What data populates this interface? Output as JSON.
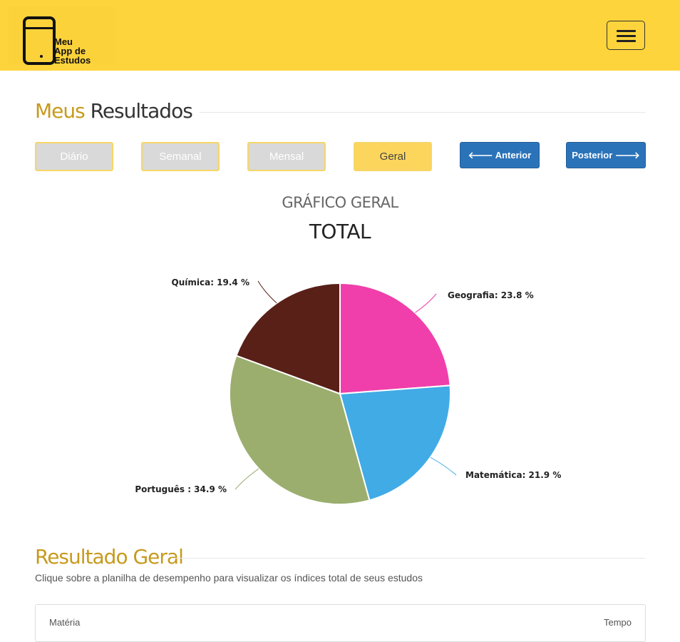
{
  "app": {
    "logo_text": [
      "Meu",
      "App de",
      "Estudos"
    ]
  },
  "header": {
    "menu_icon": "hamburger-icon",
    "bg_color": "#fdd43b"
  },
  "results": {
    "title_highlight": "Meus",
    "title_rest": "Resultados",
    "tabs": [
      {
        "label": "Diário",
        "active": false
      },
      {
        "label": "Semanal",
        "active": false
      },
      {
        "label": "Mensal",
        "active": false
      },
      {
        "label": "Geral",
        "active": true
      }
    ],
    "prev_label": "Anterior",
    "next_label": "Posterior"
  },
  "chart_data": {
    "type": "pie",
    "subtitle": "GRÁFICO GERAL",
    "title": "TOTAL",
    "slices": [
      {
        "label": "Geografia",
        "value": 23.8,
        "color": "#f03faa",
        "label_text": "Geografia: 23.8 %"
      },
      {
        "label": "Matemática",
        "value": 21.9,
        "color": "#41abe6",
        "label_text": "Matemática: 21.9 %"
      },
      {
        "label": "Português",
        "value": 34.9,
        "color": "#9bae6e",
        "label_text": "Português : 34.9 %"
      },
      {
        "label": "Química",
        "value": 19.4,
        "color": "#592018",
        "label_text": "Química: 19.4 %"
      }
    ]
  },
  "overall": {
    "title": "Resultado Geral",
    "description": "Clique sobre a planilha de desempenho para visualizar os índices total de seus estudos",
    "columns": [
      "Matéria",
      "Tempo"
    ]
  }
}
